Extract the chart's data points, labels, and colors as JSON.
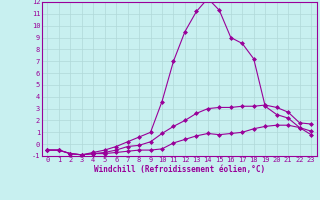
{
  "xlabel": "Windchill (Refroidissement éolien,°C)",
  "background_color": "#c8f0f0",
  "line_color": "#990099",
  "x_values": [
    0,
    1,
    2,
    3,
    4,
    5,
    6,
    7,
    8,
    9,
    10,
    11,
    12,
    13,
    14,
    15,
    16,
    17,
    18,
    19,
    20,
    21,
    22,
    23
  ],
  "series": [
    [
      -0.5,
      -0.5,
      -0.8,
      -0.9,
      -0.8,
      -0.8,
      -0.7,
      -0.6,
      -0.5,
      -0.5,
      -0.4,
      0.1,
      0.4,
      0.7,
      0.9,
      0.8,
      0.9,
      1.0,
      1.3,
      1.5,
      1.6,
      1.6,
      1.4,
      1.1
    ],
    [
      -0.5,
      -0.5,
      -0.8,
      -0.9,
      -0.8,
      -0.7,
      -0.5,
      -0.2,
      -0.1,
      0.2,
      0.9,
      1.5,
      2.0,
      2.6,
      3.0,
      3.1,
      3.1,
      3.2,
      3.2,
      3.3,
      3.1,
      2.7,
      1.8,
      1.7
    ],
    [
      -0.5,
      -0.5,
      -0.8,
      -0.9,
      -0.7,
      -0.5,
      -0.2,
      0.2,
      0.6,
      1.0,
      3.6,
      7.0,
      9.5,
      11.2,
      12.3,
      11.3,
      9.0,
      8.5,
      7.2,
      3.2,
      2.5,
      2.2,
      1.4,
      0.8
    ]
  ],
  "ylim": [
    -1,
    12
  ],
  "xlim": [
    -0.5,
    23.5
  ],
  "yticks": [
    -1,
    0,
    1,
    2,
    3,
    4,
    5,
    6,
    7,
    8,
    9,
    10,
    11,
    12
  ],
  "xticks": [
    0,
    1,
    2,
    3,
    4,
    5,
    6,
    7,
    8,
    9,
    10,
    11,
    12,
    13,
    14,
    15,
    16,
    17,
    18,
    19,
    20,
    21,
    22,
    23
  ],
  "grid_color": "#b0d8d8",
  "marker": "D",
  "marker_size": 2,
  "line_width": 0.8,
  "tick_fontsize": 5,
  "xlabel_fontsize": 5.5
}
